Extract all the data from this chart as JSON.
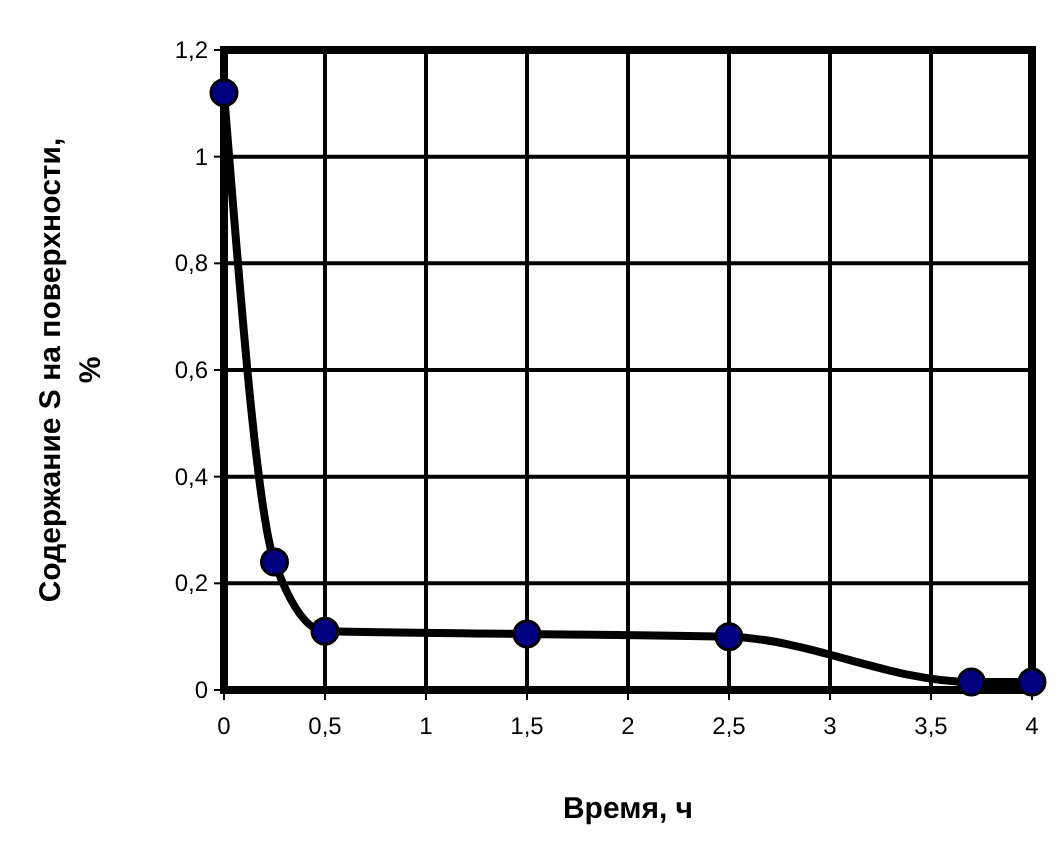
{
  "chart_data": {
    "type": "line",
    "xlabel": "Время, ч",
    "ylabel": "Содержание S на поверхности, %",
    "xlim": [
      0,
      4
    ],
    "ylim": [
      0,
      1.2
    ],
    "xticks": [
      0,
      {
        "value": 0.5,
        "label": "0,5"
      },
      1,
      {
        "value": 1.5,
        "label": "1,5"
      },
      2,
      {
        "value": 2.5,
        "label": "2,5"
      },
      3,
      {
        "value": 3.5,
        "label": "3,5"
      },
      4
    ],
    "yticks": [
      0,
      {
        "value": 0.2,
        "label": "0,2"
      },
      {
        "value": 0.4,
        "label": "0,4"
      },
      {
        "value": 0.6,
        "label": "0,6"
      },
      {
        "value": 0.8,
        "label": "0,8"
      },
      1,
      {
        "value": 1.2,
        "label": "1,2"
      }
    ],
    "grid": true,
    "marker": "circle",
    "line_style": "solid",
    "series": [
      {
        "color": "#000080",
        "x": [
          0,
          0.25,
          0.5,
          1.5,
          2.5,
          3.7,
          4
        ],
        "values": [
          1.12,
          0.24,
          0.11,
          0.105,
          0.1,
          0.015,
          0.015
        ]
      }
    ]
  }
}
